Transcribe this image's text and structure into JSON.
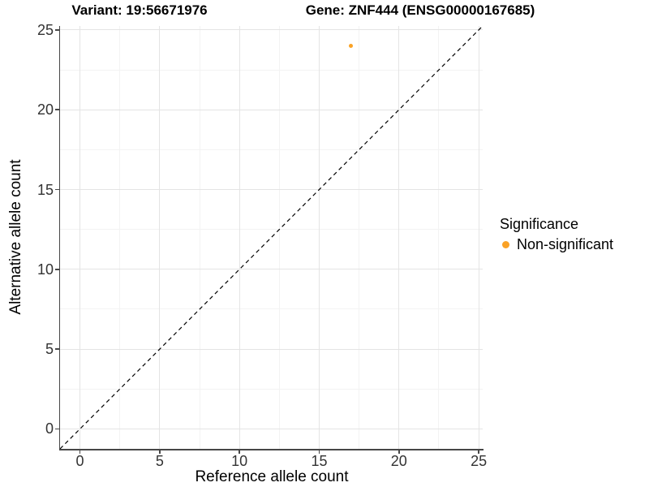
{
  "chart_data": {
    "type": "scatter",
    "title_left": "Variant: 19:56671976",
    "title_right": "Gene: ZNF444 (ENSG00000167685)",
    "xlabel": "Reference allele count",
    "ylabel": "Alternative allele count",
    "xlim": [
      -1.25,
      25.25
    ],
    "ylim": [
      -1.25,
      25.25
    ],
    "xticks": [
      0,
      5,
      10,
      15,
      20,
      25
    ],
    "yticks": [
      0,
      5,
      10,
      15,
      20,
      25
    ],
    "x_minor_ticks": [
      2.5,
      7.5,
      12.5,
      17.5,
      22.5
    ],
    "y_minor_ticks": [
      2.5,
      7.5,
      12.5,
      17.5,
      22.5
    ],
    "grid": "major+minor",
    "points": [
      {
        "x": 17,
        "y": 24,
        "series": "Non-significant"
      }
    ],
    "identity_line": {
      "style": "dashed",
      "color": "#000000",
      "from": [
        -1.25,
        -1.25
      ],
      "to": [
        25.25,
        25.25
      ]
    },
    "legend": {
      "title": "Significance",
      "position": "right",
      "entries": [
        {
          "label": "Non-significant",
          "color": "#FAA226"
        }
      ]
    }
  }
}
